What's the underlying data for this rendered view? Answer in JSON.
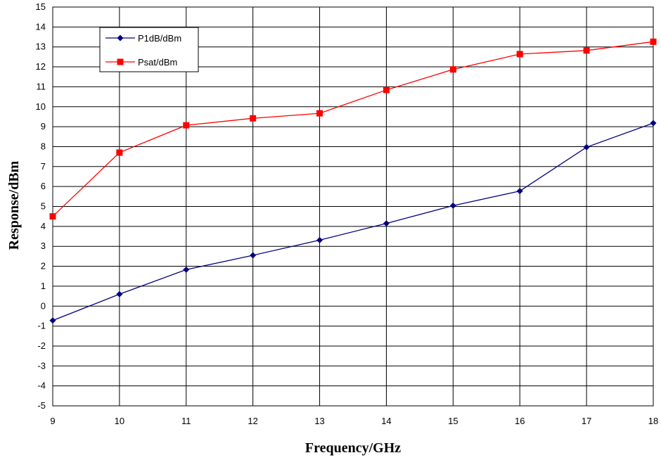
{
  "chart_data": {
    "type": "line",
    "xlabel": "Frequency/GHz",
    "ylabel": "Response/dBm",
    "x": [
      9,
      10,
      11,
      12,
      13,
      14,
      15,
      16,
      17,
      18
    ],
    "xlim": [
      9,
      18
    ],
    "ylim": [
      -5,
      15
    ],
    "yticks": [
      -5,
      -4,
      -3,
      -2,
      -1,
      0,
      1,
      2,
      3,
      4,
      5,
      6,
      7,
      8,
      9,
      10,
      11,
      12,
      13,
      14,
      15
    ],
    "grid": true,
    "legend_position": "top-left",
    "series": [
      {
        "name": "P1dB/dBm",
        "color": "#000080",
        "marker": "diamond",
        "values": [
          -0.72,
          0.6,
          1.83,
          2.55,
          3.31,
          4.15,
          5.04,
          5.77,
          7.97,
          9.18
        ]
      },
      {
        "name": "Psat/dBm",
        "color": "#ff0000",
        "marker": "square",
        "values": [
          4.5,
          7.7,
          9.07,
          9.42,
          9.67,
          10.84,
          11.87,
          12.64,
          12.82,
          13.26
        ]
      }
    ]
  }
}
